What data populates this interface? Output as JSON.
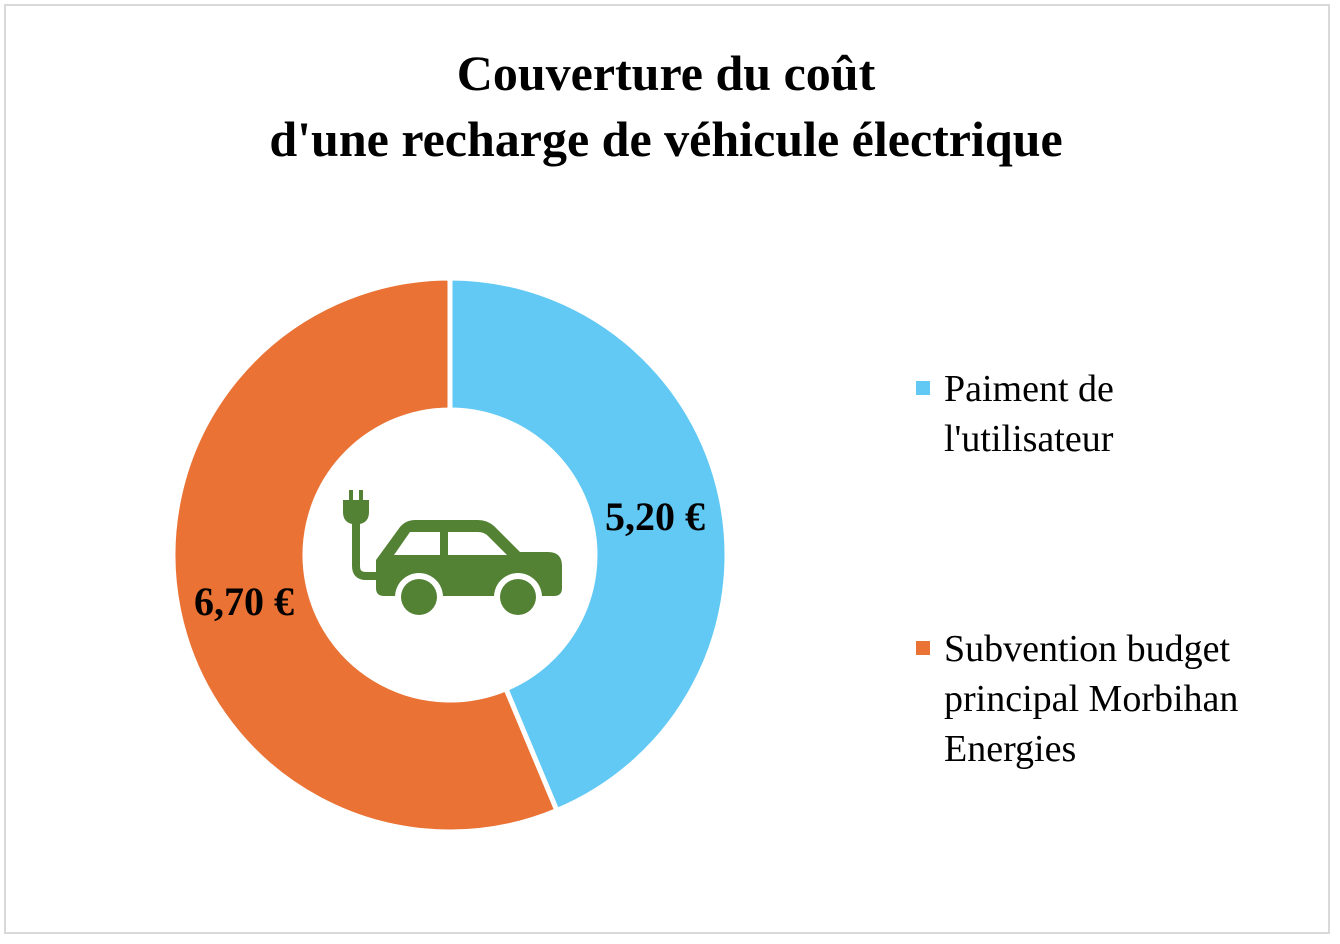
{
  "chart_data": {
    "type": "pie",
    "variant": "donut",
    "title_lines": [
      "Couverture du coût",
      "d'une recharge de véhicule électrique"
    ],
    "series": [
      {
        "name": "Paiment de l'utilisateur",
        "value": 5.2,
        "label": "5,20 €",
        "color": "#62C9F4"
      },
      {
        "name": "Subvention budget principal Morbihan Energies",
        "value": 6.7,
        "label": "6,70 €",
        "color": "#E97234"
      }
    ],
    "legend": {
      "position": "right",
      "items": [
        {
          "lines": [
            "Paiment de",
            "l'utilisateur"
          ],
          "color": "#62C9F4"
        },
        {
          "lines": [
            "Subvention budget",
            "principal Morbihan",
            "Energies"
          ],
          "color": "#E97234"
        }
      ]
    },
    "center_icon": "electric-car-icon",
    "icon_color": "#548235"
  }
}
